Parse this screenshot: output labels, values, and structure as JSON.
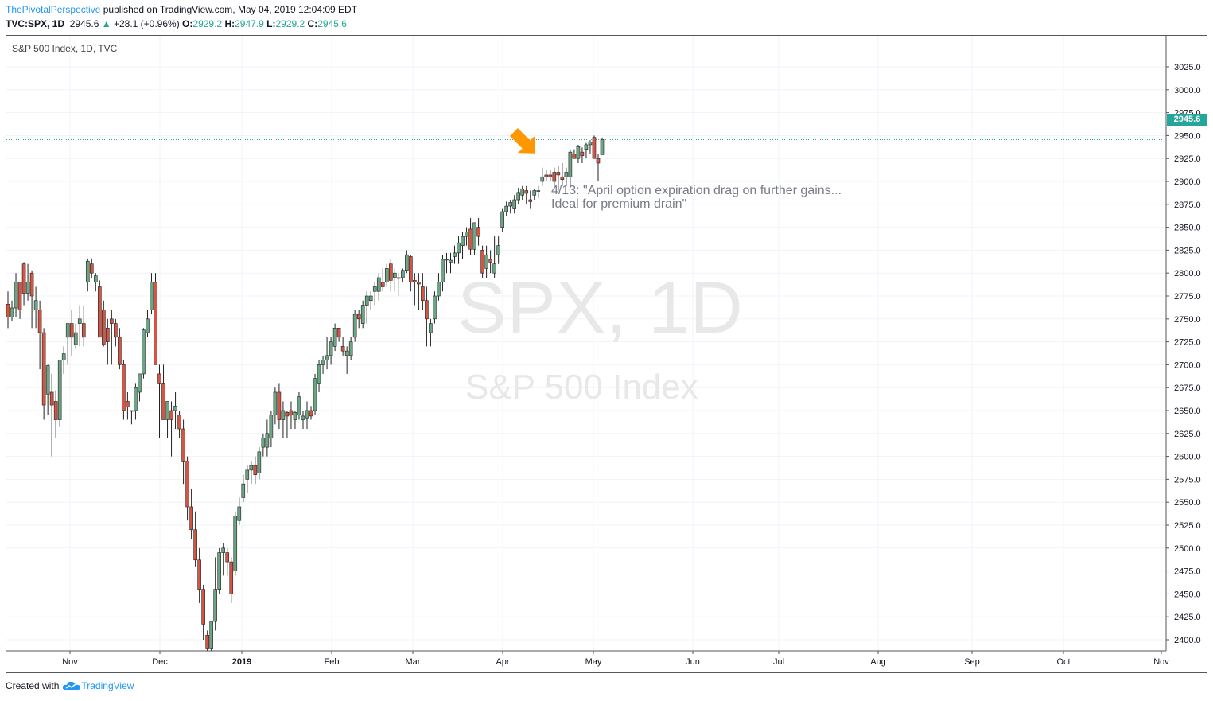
{
  "header": {
    "author": "ThePivotalPerspective",
    "published": " published on TradingView.com, May 04, 2019 12:04:09 EDT",
    "symbol": "TVC:SPX, 1D",
    "last": "2945.6",
    "change": "+28.1 (+0.96%)",
    "o_label": "O:",
    "o_val": "2929.2",
    "h_label": "H:",
    "h_val": "2947.9",
    "l_label": "L:",
    "l_val": "2929.2",
    "c_label": "C:",
    "c_val": "2945.6"
  },
  "pane_title": "S&P 500 Index, 1D, TVC",
  "watermark": {
    "symbol": "SPX, 1D",
    "description": "S&P 500 Index"
  },
  "annotation": "4/13: \"April option expiration drag on further gains...\nIdeal for premium drain\"",
  "footer": {
    "created": "Created with",
    "brand": "TradingView"
  },
  "colors": {
    "up": "#26a69a",
    "down": "#ef5350",
    "up_fill": "#6ba583",
    "down_fill": "#d75442",
    "arrow": "#ff9800",
    "grid": "#f0f3fa"
  },
  "icons": {
    "arrow": "orange-arrow-icon",
    "up_triangle": "up-triangle-icon",
    "logo": "tradingview-cloud-icon"
  },
  "chart_data": {
    "type": "candlestick",
    "title": "S&P 500 Index, 1D, TVC",
    "xlabel": "",
    "ylabel": "",
    "ylim": [
      2390,
      3040
    ],
    "y_ticks": [
      "2400.0",
      "2425.0",
      "2450.0",
      "2475.0",
      "2500.0",
      "2525.0",
      "2550.0",
      "2575.0",
      "2600.0",
      "2625.0",
      "2650.0",
      "2675.0",
      "2700.0",
      "2725.0",
      "2750.0",
      "2775.0",
      "2800.0",
      "2825.0",
      "2850.0",
      "2875.0",
      "2900.0",
      "2925.0",
      "2950.0",
      "2975.0",
      "3000.0",
      "3025.0"
    ],
    "x_ticks": [
      "Nov",
      "Dec",
      "2019",
      "Feb",
      "Mar",
      "Apr",
      "May",
      "Jun",
      "Jul",
      "Aug",
      "Sep",
      "Oct",
      "Nov"
    ],
    "bold_x_ticks": [
      "2019"
    ],
    "last_price": 2945.6,
    "last_price_label": "2945.6",
    "candles_ohlc": [
      [
        2766,
        2780,
        2740,
        2752
      ],
      [
        2752,
        2770,
        2748,
        2762
      ],
      [
        2762,
        2800,
        2752,
        2790
      ],
      [
        2790,
        2790,
        2750,
        2760
      ],
      [
        2810,
        2812,
        2765,
        2778
      ],
      [
        2778,
        2810,
        2770,
        2790
      ],
      [
        2800,
        2803,
        2740,
        2775
      ],
      [
        2760,
        2785,
        2740,
        2770
      ],
      [
        2760,
        2770,
        2695,
        2735
      ],
      [
        2735,
        2740,
        2640,
        2656
      ],
      [
        2668,
        2700,
        2645,
        2699
      ],
      [
        2670,
        2690,
        2600,
        2656
      ],
      [
        2660,
        2672,
        2620,
        2640
      ],
      [
        2640,
        2705,
        2632,
        2705
      ],
      [
        2705,
        2720,
        2690,
        2712
      ],
      [
        2730,
        2740,
        2700,
        2745
      ],
      [
        2745,
        2760,
        2710,
        2730
      ],
      [
        2722,
        2745,
        2718,
        2735
      ],
      [
        2745,
        2765,
        2720,
        2750
      ],
      [
        2745,
        2765,
        2720,
        2730
      ],
      [
        2790,
        2816,
        2780,
        2813
      ],
      [
        2810,
        2816,
        2795,
        2800
      ],
      [
        2790,
        2800,
        2780,
        2797
      ],
      [
        2785,
        2792,
        2730,
        2730
      ],
      [
        2760,
        2770,
        2720,
        2722
      ],
      [
        2740,
        2750,
        2700,
        2725
      ],
      [
        2750,
        2760,
        2700,
        2745
      ],
      [
        2745,
        2750,
        2720,
        2730
      ],
      [
        2730,
        2740,
        2695,
        2700
      ],
      [
        2700,
        2705,
        2640,
        2650
      ],
      [
        2660,
        2670,
        2640,
        2654
      ],
      [
        2650,
        2650,
        2635,
        2650
      ],
      [
        2650,
        2680,
        2640,
        2675
      ],
      [
        2670,
        2690,
        2660,
        2690
      ],
      [
        2690,
        2740,
        2685,
        2738
      ],
      [
        2735,
        2760,
        2730,
        2750
      ],
      [
        2760,
        2800,
        2755,
        2790
      ],
      [
        2790,
        2800,
        2700,
        2700
      ],
      [
        2690,
        2700,
        2620,
        2680
      ],
      [
        2680,
        2700,
        2640,
        2640
      ],
      [
        2640,
        2660,
        2620,
        2660
      ],
      [
        2650,
        2660,
        2600,
        2640
      ],
      [
        2650,
        2670,
        2630,
        2655
      ],
      [
        2645,
        2650,
        2620,
        2630
      ],
      [
        2630,
        2640,
        2570,
        2594
      ],
      [
        2595,
        2600,
        2530,
        2545
      ],
      [
        2545,
        2565,
        2510,
        2520
      ],
      [
        2520,
        2540,
        2480,
        2487
      ],
      [
        2487,
        2500,
        2440,
        2455
      ],
      [
        2455,
        2460,
        2400,
        2417
      ],
      [
        2405,
        2410,
        2351,
        2390
      ],
      [
        2390,
        2420,
        2380,
        2420
      ],
      [
        2420,
        2490,
        2410,
        2455
      ],
      [
        2455,
        2500,
        2450,
        2495
      ],
      [
        2495,
        2505,
        2470,
        2500
      ],
      [
        2495,
        2500,
        2470,
        2485
      ],
      [
        2485,
        2490,
        2440,
        2450
      ],
      [
        2475,
        2540,
        2470,
        2535
      ],
      [
        2530,
        2555,
        2525,
        2545
      ],
      [
        2555,
        2580,
        2550,
        2570
      ],
      [
        2575,
        2590,
        2560,
        2585
      ],
      [
        2585,
        2595,
        2570,
        2590
      ],
      [
        2590,
        2600,
        2570,
        2580
      ],
      [
        2582,
        2610,
        2575,
        2605
      ],
      [
        2610,
        2625,
        2600,
        2620
      ],
      [
        2610,
        2640,
        2600,
        2625
      ],
      [
        2620,
        2650,
        2610,
        2645
      ],
      [
        2645,
        2675,
        2635,
        2670
      ],
      [
        2670,
        2680,
        2630,
        2640
      ],
      [
        2640,
        2660,
        2620,
        2650
      ],
      [
        2648,
        2650,
        2620,
        2644
      ],
      [
        2650,
        2660,
        2630,
        2645
      ],
      [
        2640,
        2650,
        2630,
        2648
      ],
      [
        2645,
        2670,
        2640,
        2665
      ],
      [
        2640,
        2650,
        2630,
        2644
      ],
      [
        2642,
        2660,
        2630,
        2650
      ],
      [
        2650,
        2655,
        2640,
        2644
      ],
      [
        2650,
        2690,
        2645,
        2685
      ],
      [
        2680,
        2705,
        2670,
        2700
      ],
      [
        2700,
        2710,
        2690,
        2705
      ],
      [
        2705,
        2730,
        2695,
        2710
      ],
      [
        2710,
        2730,
        2700,
        2725
      ],
      [
        2720,
        2745,
        2715,
        2740
      ],
      [
        2740,
        2740,
        2725,
        2730
      ],
      [
        2720,
        2730,
        2710,
        2715
      ],
      [
        2710,
        2720,
        2690,
        2715
      ],
      [
        2710,
        2730,
        2705,
        2725
      ],
      [
        2730,
        2760,
        2725,
        2755
      ],
      [
        2755,
        2760,
        2740,
        2750
      ],
      [
        2745,
        2770,
        2740,
        2765
      ],
      [
        2765,
        2780,
        2745,
        2775
      ],
      [
        2770,
        2780,
        2760,
        2775
      ],
      [
        2780,
        2790,
        2765,
        2785
      ],
      [
        2780,
        2800,
        2770,
        2795
      ],
      [
        2790,
        2805,
        2780,
        2785
      ],
      [
        2790,
        2810,
        2785,
        2805
      ],
      [
        2810,
        2816,
        2780,
        2792
      ],
      [
        2795,
        2805,
        2780,
        2800
      ],
      [
        2795,
        2800,
        2775,
        2795
      ],
      [
        2795,
        2805,
        2790,
        2803
      ],
      [
        2803,
        2825,
        2800,
        2820
      ],
      [
        2818,
        2820,
        2780,
        2790
      ],
      [
        2792,
        2800,
        2765,
        2790
      ],
      [
        2790,
        2800,
        2760,
        2788
      ],
      [
        2785,
        2800,
        2760,
        2770
      ],
      [
        2770,
        2785,
        2720,
        2750
      ],
      [
        2735,
        2750,
        2720,
        2745
      ],
      [
        2750,
        2780,
        2745,
        2775
      ],
      [
        2775,
        2800,
        2770,
        2790
      ],
      [
        2790,
        2820,
        2780,
        2815
      ],
      [
        2815,
        2822,
        2800,
        2815
      ],
      [
        2812,
        2822,
        2800,
        2814
      ],
      [
        2818,
        2830,
        2810,
        2822
      ],
      [
        2822,
        2840,
        2810,
        2833
      ],
      [
        2830,
        2845,
        2815,
        2840
      ],
      [
        2840,
        2850,
        2830,
        2845
      ],
      [
        2848,
        2860,
        2820,
        2826
      ],
      [
        2826,
        2850,
        2820,
        2855
      ],
      [
        2850,
        2860,
        2830,
        2840
      ],
      [
        2825,
        2830,
        2795,
        2800
      ],
      [
        2805,
        2830,
        2795,
        2820
      ],
      [
        2815,
        2825,
        2800,
        2812
      ],
      [
        2800,
        2840,
        2795,
        2810
      ],
      [
        2820,
        2840,
        2810,
        2830
      ],
      [
        2850,
        2870,
        2845,
        2867
      ],
      [
        2867,
        2878,
        2862,
        2873
      ],
      [
        2873,
        2880,
        2865,
        2877
      ],
      [
        2870,
        2885,
        2865,
        2880
      ],
      [
        2880,
        2893,
        2875,
        2888
      ],
      [
        2885,
        2895,
        2880,
        2892
      ],
      [
        2890,
        2895,
        2875,
        2887
      ],
      [
        2880,
        2890,
        2870,
        2878
      ],
      [
        2885,
        2892,
        2880,
        2890
      ],
      [
        2890,
        2895,
        2882,
        2890
      ],
      [
        2900,
        2915,
        2895,
        2905
      ],
      [
        2907,
        2912,
        2900,
        2905
      ],
      [
        2907,
        2912,
        2900,
        2905
      ],
      [
        2910,
        2915,
        2895,
        2900
      ],
      [
        2910,
        2917,
        2890,
        2907
      ],
      [
        2905,
        2920,
        2895,
        2902
      ],
      [
        2905,
        2915,
        2895,
        2910
      ],
      [
        2905,
        2935,
        2895,
        2932
      ],
      [
        2930,
        2935,
        2925,
        2925
      ],
      [
        2925,
        2940,
        2920,
        2938
      ],
      [
        2932,
        2937,
        2920,
        2928
      ],
      [
        2935,
        2942,
        2925,
        2940
      ],
      [
        2940,
        2945,
        2930,
        2943
      ],
      [
        2948,
        2950,
        2925,
        2925
      ],
      [
        2925,
        2930,
        2900,
        2920
      ],
      [
        2929.2,
        2947.9,
        2929.2,
        2945.6
      ]
    ]
  }
}
